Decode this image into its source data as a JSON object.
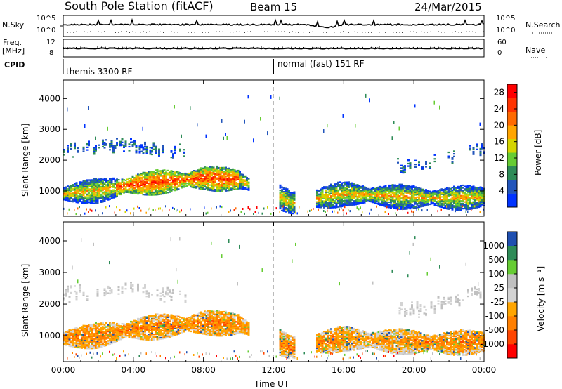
{
  "header": {
    "station": "South Pole Station (fitACF)",
    "beam": "Beam 15",
    "date": "24/Mar/2015"
  },
  "labels": {
    "nsky": "N.Sky",
    "nsearch": "N.Search",
    "freq_top": "Freq.",
    "freq_unit": "[MHz]",
    "nave": "Nave",
    "cpid": "CPID",
    "ylabel": "Slant Range [km]",
    "xlabel": "Time UT",
    "power_label": "Power [dB]",
    "velocity_label": "Velocity [m s⁻¹]"
  },
  "noise_axis": {
    "left_top": "10^5",
    "left_bottom": "10^0",
    "right_top": "10^5",
    "right_bottom": "10^0"
  },
  "freq_axis": {
    "left_top": "12",
    "left_bottom": "8",
    "right_top": "60",
    "right_bottom": "0"
  },
  "cpid": {
    "before": "themis 3300 RF",
    "after": "normal (fast) 151 RF",
    "switch_hour": 12
  },
  "colors": {
    "power": [
      "#0033ff",
      "#2255bb",
      "#2e8b57",
      "#66cc33",
      "#d4d400",
      "#ffa500",
      "#ff6a00",
      "#ff3300",
      "#ff0000"
    ],
    "velocity": [
      "#ff0000",
      "#ff4500",
      "#ff7f00",
      "#ffa500",
      "#d3d3d3",
      "#c0c0c0",
      "#66cc33",
      "#2e8b57",
      "#1f4fb0"
    ]
  },
  "chart_data": [
    {
      "type": "heatmap",
      "panel": "power",
      "xlabel": "",
      "ylabel": "Slant Range [km]",
      "x_ticks": [
        "00:00",
        "04:00",
        "08:00",
        "12:00",
        "16:00",
        "20:00",
        "00:00"
      ],
      "xlim_hours": [
        0,
        24
      ],
      "ylim_km": [
        180,
        4600
      ],
      "y_ticks": [
        1000,
        2000,
        3000,
        4000
      ],
      "colorbar": {
        "label": "Power [dB]",
        "ticks": [
          4,
          8,
          12,
          16,
          20,
          24,
          28
        ],
        "range": [
          0,
          30
        ]
      },
      "main_echo_band_km": [
        {
          "hour": 0,
          "km": 900
        },
        {
          "hour": 2,
          "km": 1000
        },
        {
          "hour": 4,
          "km": 1200
        },
        {
          "hour": 6,
          "km": 1300
        },
        {
          "hour": 8,
          "km": 1400
        },
        {
          "hour": 10,
          "km": 1350
        },
        {
          "hour": 13,
          "km": 600
        },
        {
          "hour": 16,
          "km": 900
        },
        {
          "hour": 19,
          "km": 800
        },
        {
          "hour": 22,
          "km": 750
        },
        {
          "hour": 24,
          "km": 800
        }
      ],
      "upper_echo_band_km": [
        {
          "hour": 0,
          "km": 2300
        },
        {
          "hour": 4,
          "km": 2500
        },
        {
          "hour": 6,
          "km": 2300
        },
        {
          "hour": 20,
          "km": 1800
        },
        {
          "hour": 24,
          "km": 2400
        }
      ]
    },
    {
      "type": "heatmap",
      "panel": "velocity",
      "xlabel": "Time UT",
      "ylabel": "Slant Range [km]",
      "x_ticks": [
        "00:00",
        "04:00",
        "08:00",
        "12:00",
        "16:00",
        "20:00",
        "00:00"
      ],
      "xlim_hours": [
        0,
        24
      ],
      "ylim_km": [
        180,
        4600
      ],
      "y_ticks": [
        1000,
        2000,
        3000,
        4000
      ],
      "colorbar": {
        "label": "Velocity [m s⁻¹]",
        "ticks": [
          "1000",
          "500",
          "100",
          "25",
          "-25",
          "-100",
          "-500",
          "-1000"
        ]
      }
    }
  ]
}
